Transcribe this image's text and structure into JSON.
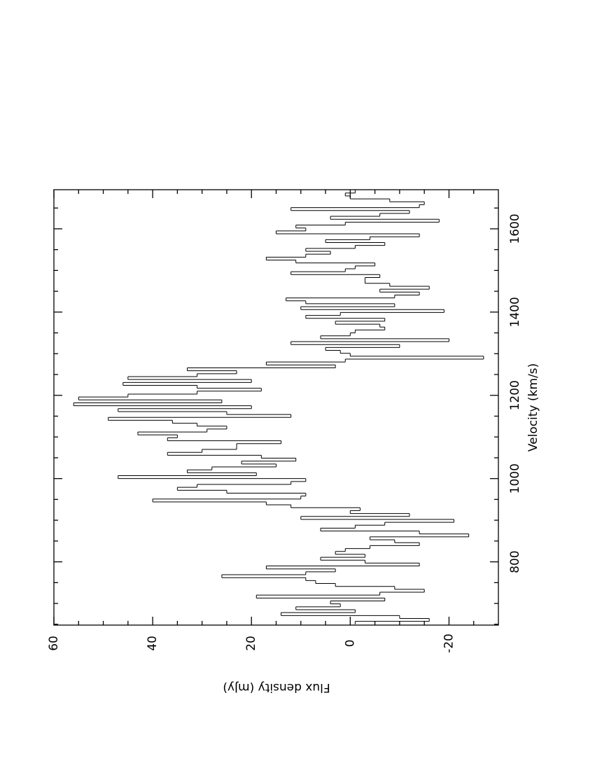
{
  "chart_data": {
    "type": "histogram",
    "orientation": "rotated-ccw",
    "x_label": "Velocity (km/s)",
    "y_label": "Flux density (mJy)",
    "xlim": [
      648,
      1694
    ],
    "ylim": [
      -30,
      60
    ],
    "xticks": [
      800,
      1000,
      1200,
      1400,
      1600
    ],
    "xminor_ticks": [
      650,
      700,
      750,
      850,
      900,
      950,
      1050,
      1100,
      1150,
      1250,
      1300,
      1350,
      1450,
      1500,
      1550,
      1650
    ],
    "yticks": [
      -20,
      0,
      20,
      40,
      60
    ],
    "yminor_ticks": [
      -25,
      -15,
      -10,
      -5,
      5,
      10,
      15,
      25,
      30,
      35,
      45,
      50,
      55
    ],
    "color": "#000000",
    "bins": [
      650,
      657,
      664,
      671,
      678,
      685,
      692,
      699,
      706,
      713,
      720,
      727,
      734,
      741,
      748,
      755,
      762,
      769,
      776,
      783,
      790,
      797,
      804,
      811,
      818,
      825,
      832,
      839,
      846,
      853,
      860,
      867,
      874,
      881,
      888,
      895,
      902,
      909,
      916,
      923,
      930,
      937,
      944,
      951,
      958,
      965,
      972,
      979,
      986,
      993,
      1000,
      1007,
      1014,
      1021,
      1028,
      1035,
      1042,
      1049,
      1056,
      1063,
      1070,
      1077,
      1084,
      1091,
      1098,
      1105,
      1112,
      1119,
      1126,
      1133,
      1140,
      1147,
      1154,
      1161,
      1168,
      1175,
      1182,
      1189,
      1196,
      1203,
      1210,
      1217,
      1224,
      1231,
      1238,
      1245,
      1252,
      1259,
      1266,
      1273,
      1280,
      1287,
      1294,
      1301,
      1308,
      1315,
      1322,
      1329,
      1336,
      1343,
      1350,
      1357,
      1364,
      1371,
      1378,
      1385,
      1392,
      1399,
      1406,
      1413,
      1420,
      1427,
      1434,
      1441,
      1448,
      1455,
      1462,
      1469,
      1476,
      1483,
      1490,
      1497,
      1504,
      1511,
      1518,
      1525,
      1532,
      1539,
      1546,
      1553,
      1560,
      1567,
      1574,
      1581,
      1588,
      1595,
      1602,
      1609,
      1616,
      1623,
      1630,
      1637,
      1644,
      1651,
      1658,
      1665,
      1672,
      1679,
      1686,
      1693
    ],
    "values": [
      -1,
      -16,
      -10,
      14,
      -1,
      11,
      2,
      4,
      -7,
      19,
      -6,
      -15,
      -9,
      3,
      7,
      9,
      26,
      9,
      3,
      17,
      -14,
      -3,
      6,
      -3,
      3,
      1,
      -4,
      -14,
      -9,
      -4,
      -24,
      -14,
      6,
      -1,
      -7,
      -21,
      10,
      -12,
      0,
      -2,
      12,
      17,
      40,
      10,
      9,
      25,
      35,
      31,
      12,
      9,
      47,
      19,
      33,
      28,
      15,
      22,
      11,
      18,
      37,
      30,
      23,
      23,
      14,
      37,
      35,
      43,
      29,
      25,
      31,
      36,
      49,
      12,
      25,
      47,
      20,
      56,
      26,
      55,
      45,
      31,
      18,
      31,
      46,
      20,
      45,
      31,
      23,
      33,
      3,
      17,
      1,
      -27,
      0,
      2,
      5,
      -10,
      12,
      -20,
      6,
      0,
      -1,
      -7,
      -6,
      3,
      -7,
      9,
      2,
      -19,
      10,
      -9,
      9,
      13,
      -9,
      -14,
      -6,
      -16,
      -8,
      -3,
      -3,
      -6,
      12,
      1,
      -1,
      -5,
      11,
      17,
      9,
      4,
      9,
      -1,
      -7,
      5,
      -4,
      -14,
      15,
      9,
      11,
      1,
      -18,
      4,
      -6,
      -12,
      12,
      -14,
      -15,
      -8,
      0,
      1,
      -1
    ]
  }
}
